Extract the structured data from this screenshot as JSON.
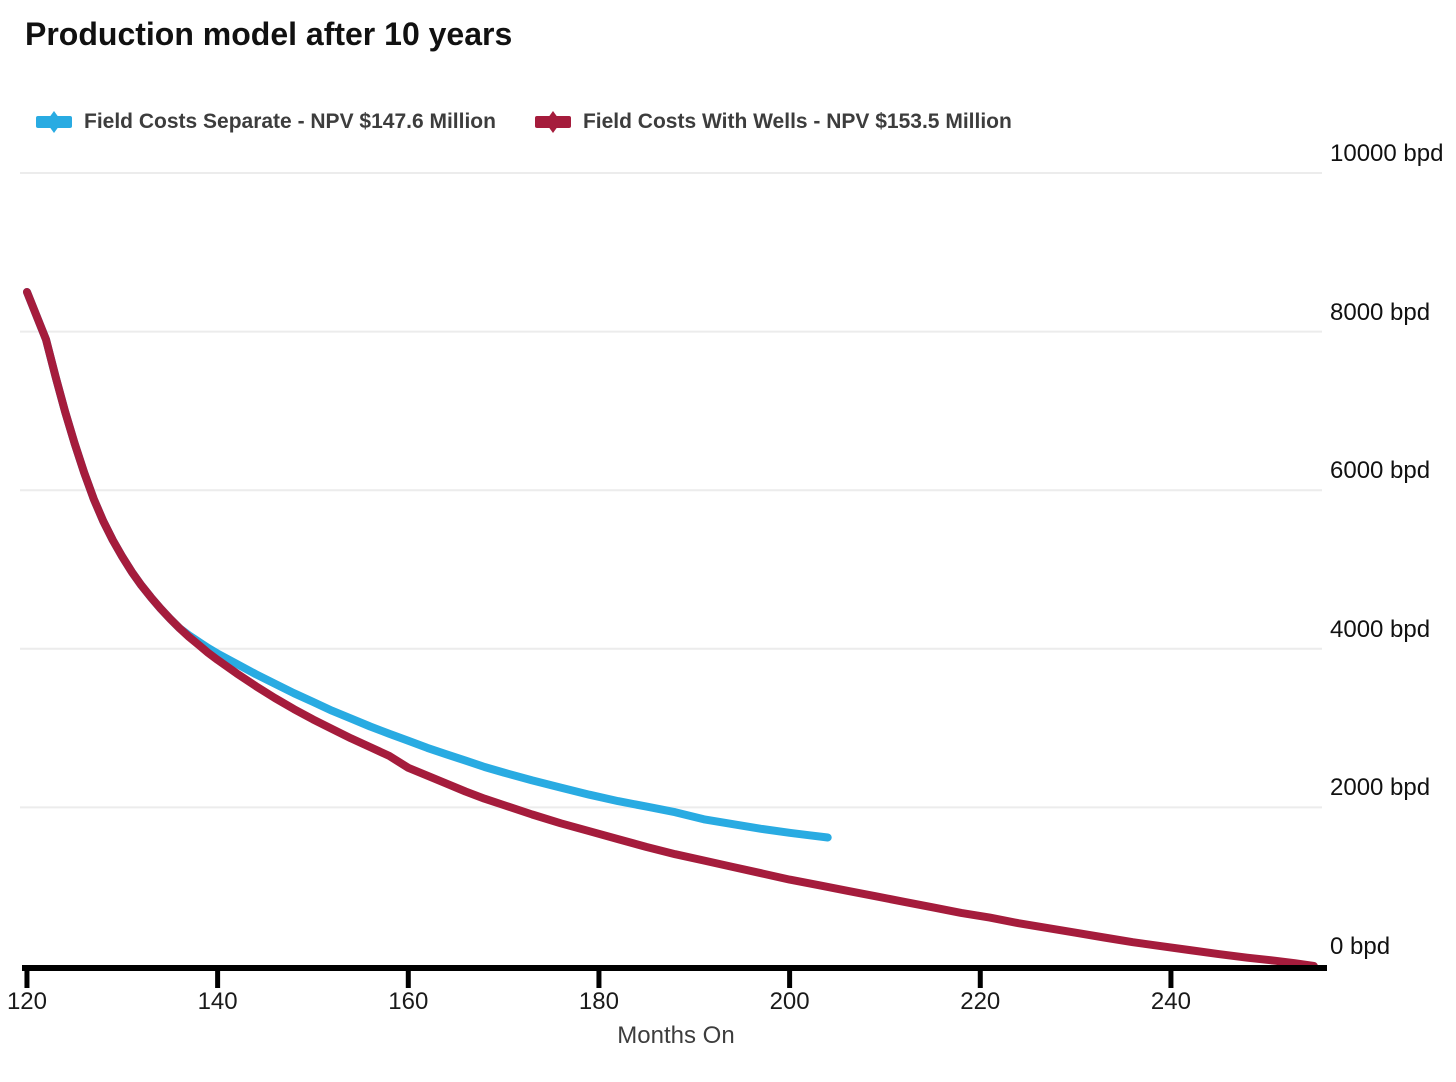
{
  "title": "Production model after 10 years",
  "legend": [
    {
      "label": "Field Costs Separate - NPV $147.6 Million",
      "color": "#29ABE2"
    },
    {
      "label": "Field Costs With Wells - NPV $153.5 Million",
      "color": "#A51C3C"
    }
  ],
  "colors": {
    "blue_series": "#29ABE2",
    "red_series": "#A51C3C",
    "gridline": "#ececec",
    "axis": "#000000",
    "title_text": "#111111",
    "legend_text": "#3d3d3d",
    "tick_text": "#1a1a1a"
  },
  "chart_data": {
    "type": "line",
    "title": "Production model after 10 years",
    "xlabel": "Months On",
    "ylabel": "bpd",
    "grid": true,
    "legend_position": "top-left",
    "x_range": [
      119.27,
      256.37
    ],
    "y_range": [
      0,
      10000
    ],
    "x_ticks": [
      {
        "value": 120,
        "label": "120"
      },
      {
        "value": 140,
        "label": "140"
      },
      {
        "value": 160,
        "label": "160"
      },
      {
        "value": 180,
        "label": "180"
      },
      {
        "value": 200,
        "label": "200"
      },
      {
        "value": 220,
        "label": "220"
      },
      {
        "value": 240,
        "label": "240"
      }
    ],
    "y_ticks": [
      {
        "value": 0,
        "label": "0 bpd"
      },
      {
        "value": 2000,
        "label": "2000 bpd"
      },
      {
        "value": 4000,
        "label": "4000 bpd"
      },
      {
        "value": 6000,
        "label": "6000 bpd"
      },
      {
        "value": 8000,
        "label": "8000 bpd"
      },
      {
        "value": 10000,
        "label": "10000 bpd"
      }
    ],
    "series": [
      {
        "name": "Field Costs Separate - NPV $147.6 Million",
        "color": "#29ABE2",
        "npv_million_usd": 147.6,
        "points": [
          [
            120,
            8500
          ],
          [
            121,
            8200
          ],
          [
            122,
            7900
          ],
          [
            123,
            7430
          ],
          [
            124,
            6990
          ],
          [
            125,
            6590
          ],
          [
            126,
            6220
          ],
          [
            127,
            5890
          ],
          [
            128,
            5610
          ],
          [
            129,
            5370
          ],
          [
            130,
            5160
          ],
          [
            131,
            4970
          ],
          [
            132,
            4800
          ],
          [
            133,
            4650
          ],
          [
            134,
            4510
          ],
          [
            135,
            4380
          ],
          [
            136,
            4260
          ],
          [
            137,
            4170
          ],
          [
            138,
            4090
          ],
          [
            139,
            4010
          ],
          [
            140,
            3940
          ],
          [
            142,
            3810
          ],
          [
            144,
            3680
          ],
          [
            146,
            3560
          ],
          [
            148,
            3440
          ],
          [
            150,
            3330
          ],
          [
            152,
            3220
          ],
          [
            154,
            3120
          ],
          [
            156,
            3020
          ],
          [
            158,
            2930
          ],
          [
            160,
            2840
          ],
          [
            162,
            2750
          ],
          [
            164,
            2670
          ],
          [
            166,
            2590
          ],
          [
            168,
            2510
          ],
          [
            170,
            2440
          ],
          [
            173,
            2340
          ],
          [
            176,
            2250
          ],
          [
            179,
            2160
          ],
          [
            182,
            2080
          ],
          [
            185,
            2010
          ],
          [
            188,
            1940
          ],
          [
            191,
            1850
          ],
          [
            194,
            1790
          ],
          [
            197,
            1730
          ],
          [
            200,
            1680
          ],
          [
            202,
            1650
          ],
          [
            204,
            1620
          ]
        ]
      },
      {
        "name": "Field Costs With Wells - NPV $153.5 Million",
        "color": "#A51C3C",
        "npv_million_usd": 153.5,
        "points": [
          [
            120,
            8500
          ],
          [
            121,
            8200
          ],
          [
            122,
            7900
          ],
          [
            123,
            7430
          ],
          [
            124,
            6990
          ],
          [
            125,
            6590
          ],
          [
            126,
            6220
          ],
          [
            127,
            5890
          ],
          [
            128,
            5610
          ],
          [
            129,
            5370
          ],
          [
            130,
            5160
          ],
          [
            131,
            4970
          ],
          [
            132,
            4800
          ],
          [
            133,
            4650
          ],
          [
            134,
            4510
          ],
          [
            135,
            4380
          ],
          [
            136,
            4260
          ],
          [
            137,
            4150
          ],
          [
            138,
            4050
          ],
          [
            139,
            3950
          ],
          [
            140,
            3860
          ],
          [
            142,
            3690
          ],
          [
            144,
            3530
          ],
          [
            146,
            3380
          ],
          [
            148,
            3240
          ],
          [
            150,
            3110
          ],
          [
            152,
            2990
          ],
          [
            154,
            2870
          ],
          [
            156,
            2760
          ],
          [
            158,
            2650
          ],
          [
            160,
            2500
          ],
          [
            162,
            2400
          ],
          [
            164,
            2300
          ],
          [
            166,
            2200
          ],
          [
            168,
            2110
          ],
          [
            170,
            2030
          ],
          [
            173,
            1910
          ],
          [
            176,
            1800
          ],
          [
            179,
            1700
          ],
          [
            182,
            1600
          ],
          [
            185,
            1500
          ],
          [
            188,
            1410
          ],
          [
            191,
            1330
          ],
          [
            194,
            1250
          ],
          [
            197,
            1170
          ],
          [
            200,
            1090
          ],
          [
            203,
            1020
          ],
          [
            206,
            950
          ],
          [
            209,
            880
          ],
          [
            212,
            810
          ],
          [
            215,
            740
          ],
          [
            218,
            670
          ],
          [
            221,
            610
          ],
          [
            224,
            540
          ],
          [
            227,
            480
          ],
          [
            230,
            420
          ],
          [
            233,
            360
          ],
          [
            236,
            300
          ],
          [
            239,
            250
          ],
          [
            242,
            200
          ],
          [
            245,
            150
          ],
          [
            248,
            105
          ],
          [
            251,
            65
          ],
          [
            253,
            35
          ],
          [
            255,
            0
          ]
        ]
      }
    ]
  }
}
